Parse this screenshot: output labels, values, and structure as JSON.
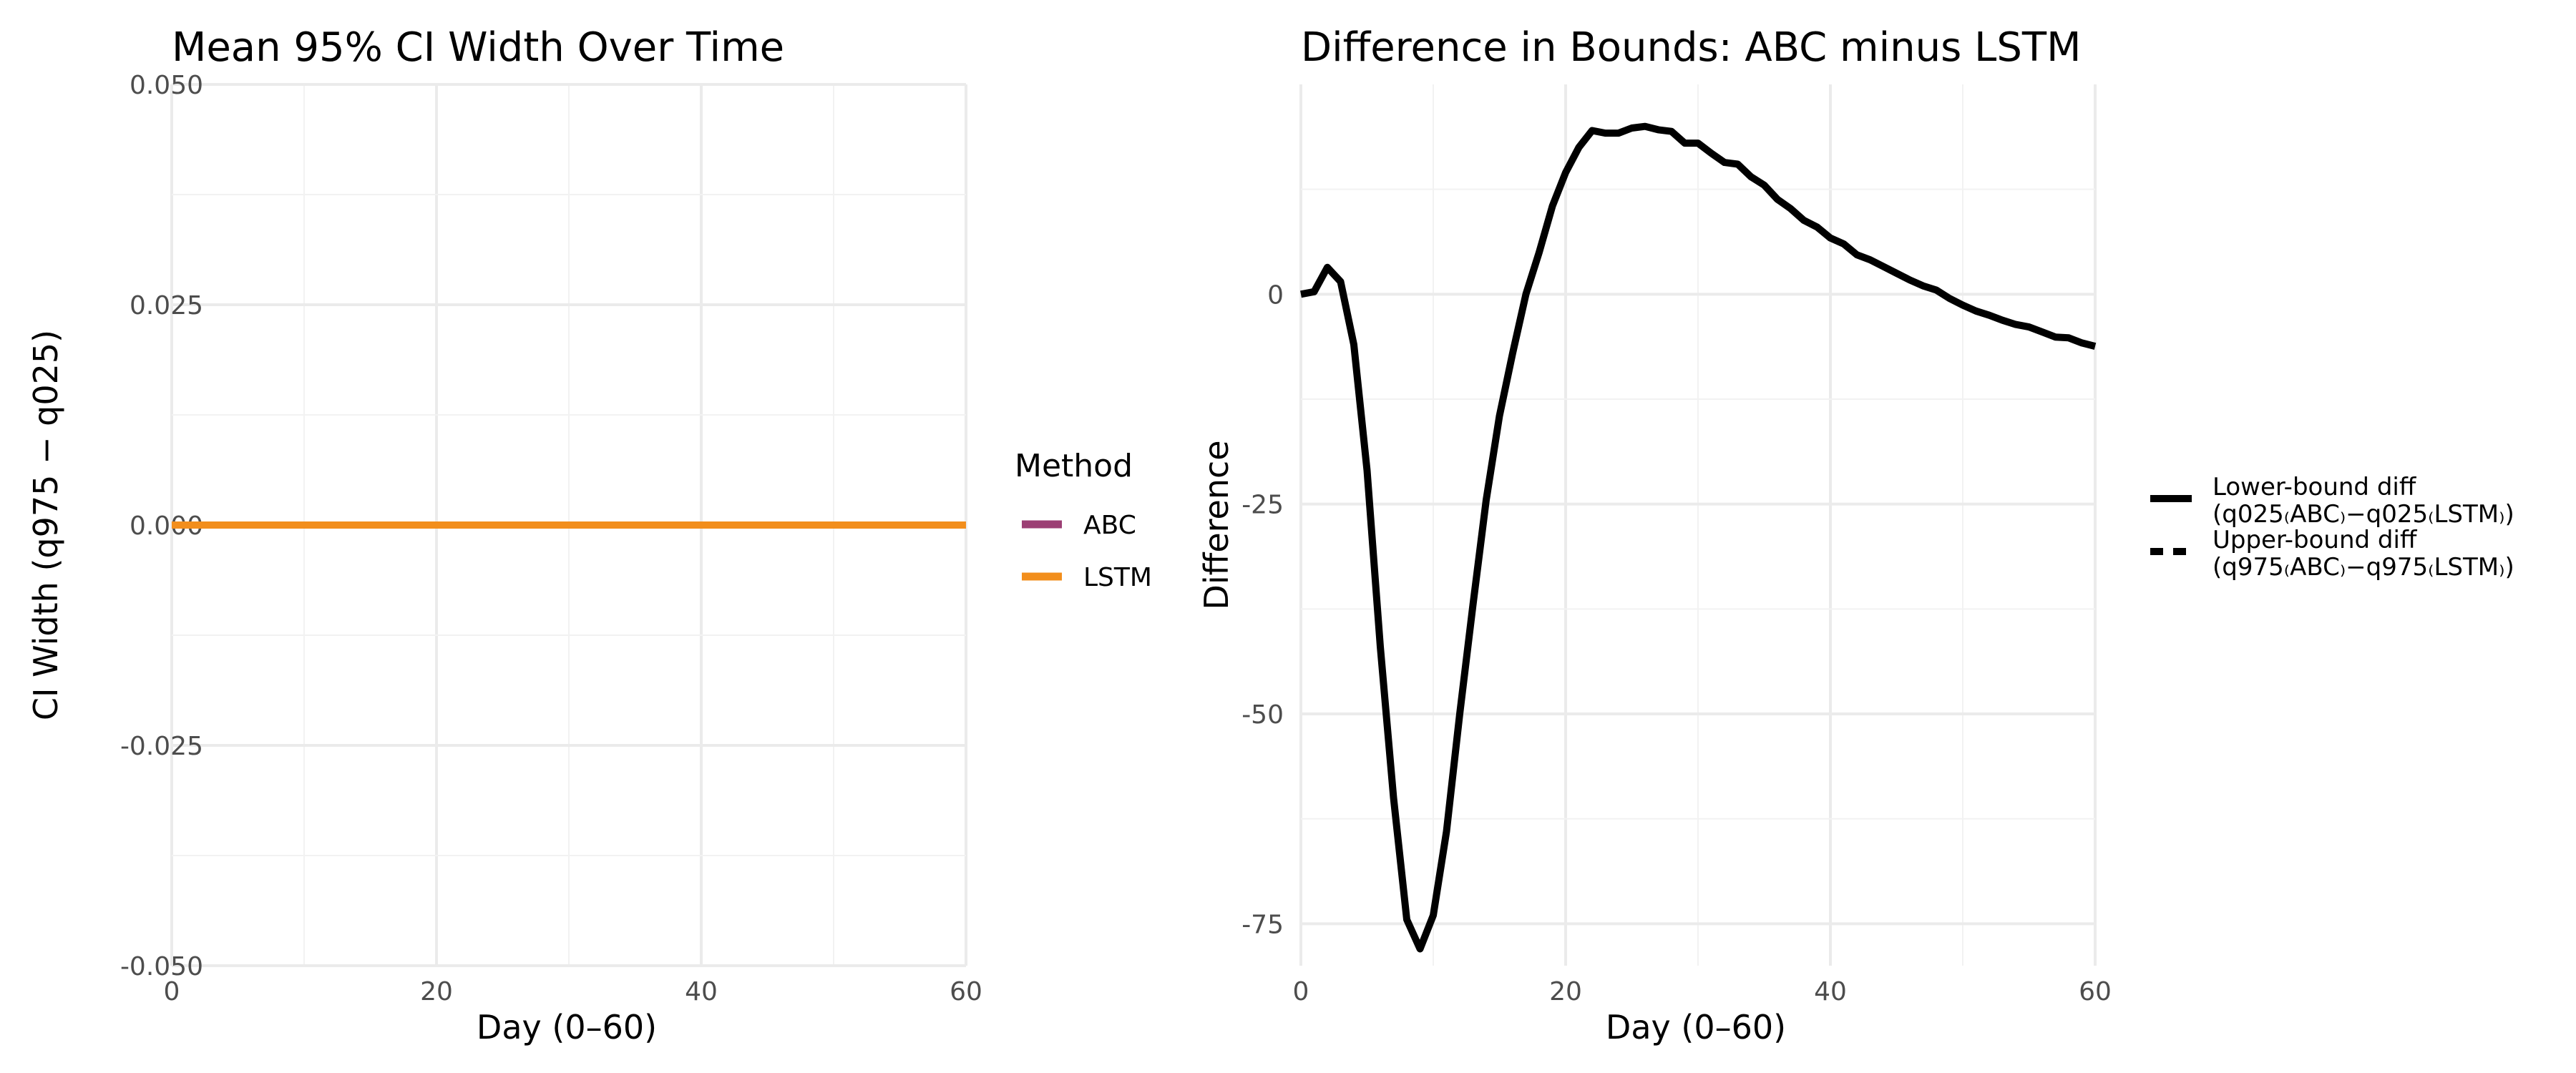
{
  "chart_data": [
    {
      "type": "line",
      "title": "Mean 95% CI Width Over Time",
      "xlabel": "Day (0–60)",
      "ylabel": "CI Width (q975 − q025)",
      "xlim": [
        0,
        60
      ],
      "ylim": [
        -0.05,
        0.05
      ],
      "xticks": [
        "0",
        "20",
        "40",
        "60"
      ],
      "yticks": [
        "0.050",
        "0.025",
        "0.000",
        "-0.025",
        "-0.050"
      ],
      "grid": true,
      "legend": {
        "title": "Method",
        "placement": "right"
      },
      "series": [
        {
          "name": "ABC",
          "color": "#9c3f74",
          "x": [
            0,
            60
          ],
          "y": [
            0,
            0
          ]
        },
        {
          "name": "LSTM",
          "color": "#f28e1c",
          "x": [
            0,
            60
          ],
          "y": [
            0,
            0
          ]
        }
      ]
    },
    {
      "type": "line",
      "title": "Difference in Bounds: ABC minus LSTM",
      "xlabel": "Day (0–60)",
      "ylabel": "Difference",
      "xlim": [
        0,
        60
      ],
      "ylim": [
        -80,
        25
      ],
      "xticks": [
        "0",
        "20",
        "40",
        "60"
      ],
      "yticks": [
        "0",
        "-25",
        "-50",
        "-75"
      ],
      "grid": true,
      "legend": {
        "placement": "right"
      },
      "series": [
        {
          "name_line1": "Lower-bound diff",
          "name_line2": "(q025₍ABC₎−q025₍LSTM₎)",
          "color": "#000000",
          "linetype": "solid",
          "x": [
            0,
            1,
            2,
            3,
            4,
            5,
            6,
            7,
            8,
            9,
            10,
            11,
            12,
            13,
            14,
            15,
            16,
            17,
            18,
            19,
            20,
            21,
            22,
            23,
            24,
            25,
            26,
            27,
            28,
            29,
            30,
            31,
            32,
            33,
            34,
            35,
            36,
            37,
            38,
            39,
            40,
            41,
            42,
            43,
            44,
            45,
            46,
            47,
            48,
            49,
            50,
            51,
            52,
            53,
            54,
            55,
            56,
            57,
            58,
            59,
            60
          ],
          "y": [
            0,
            0.3,
            3.2,
            1.5,
            -6,
            -21,
            -42,
            -60,
            -74.5,
            -78,
            -74,
            -64,
            -50,
            -37,
            -24.5,
            -14.5,
            -7,
            0,
            5,
            10.5,
            14.5,
            17.5,
            19.5,
            19.2,
            19.2,
            19.8,
            20,
            19.6,
            19.4,
            18,
            18,
            16.8,
            15.7,
            15.5,
            14,
            13,
            11.3,
            10.2,
            8.8,
            8,
            6.7,
            6,
            4.7,
            4.1,
            3.3,
            2.5,
            1.7,
            1,
            0.5,
            -0.5,
            -1.3,
            -2,
            -2.5,
            -3.1,
            -3.6,
            -3.9,
            -4.5,
            -5.1,
            -5.2,
            -5.8,
            -6.2
          ]
        },
        {
          "name_line1": "Upper-bound diff",
          "name_line2": "(q975₍ABC₎−q975₍LSTM₎)",
          "color": "#000000",
          "linetype": "dashed",
          "x": [],
          "y": []
        }
      ]
    }
  ]
}
